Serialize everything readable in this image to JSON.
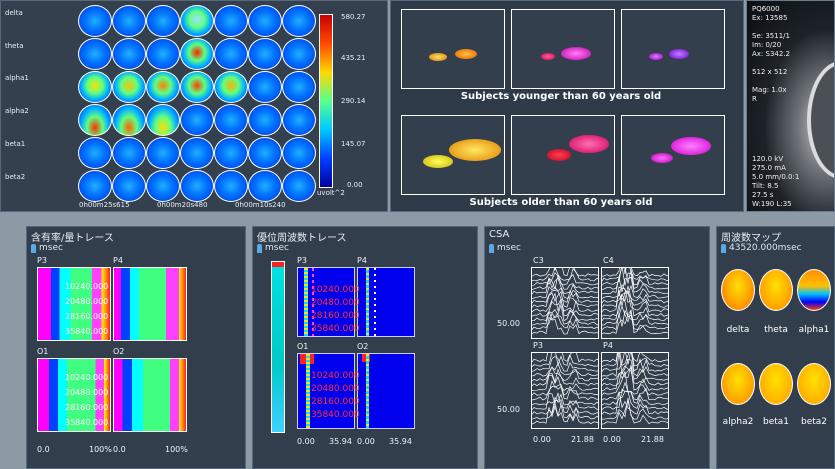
{
  "topo": {
    "rows": [
      "delta",
      "theta",
      "alpha1",
      "alpha2",
      "beta1",
      "beta2"
    ],
    "times": [
      "0h00m25s615",
      "0h00m20s480",
      "0h00m10s240"
    ],
    "scale": [
      "580.27",
      "435.21",
      "290.14",
      "145.07",
      "0.00"
    ],
    "unit": "uvolt^2"
  },
  "ellipses": {
    "caption_young": "Subjects younger than 60 years old",
    "caption_old": "Subjects older than 60 years old"
  },
  "ct": {
    "tl": [
      "PQ6000",
      "Ex: 13585",
      "",
      "Se: 3511/1",
      "Im: 0/20",
      "Ax: S342.2",
      "",
      "512 x 512",
      "",
      "Mag: 1.0x",
      "R"
    ],
    "bl": [
      "120.0 kV",
      "275.0 mA",
      "5.0 mm/0.0:1",
      "Tilt: 8.5",
      "27.5 s",
      "W:190  L:35"
    ]
  },
  "coherence": {
    "title": "含有率/量トレース",
    "unit": "msec",
    "channels": [
      "P3",
      "P4",
      "O1",
      "O2"
    ],
    "ticks": [
      "10240.000",
      "20480.000",
      "28160.000",
      "35840.000"
    ],
    "x_left": "0.0",
    "x_right": "100%"
  },
  "dominant": {
    "title": "優位周波数トレース",
    "unit": "msec",
    "channels": [
      "P3",
      "P4",
      "O1",
      "O2"
    ],
    "ticks": [
      "10240.000",
      "20480.000",
      "28160.000",
      "35840.000"
    ],
    "x_left": "0.00",
    "x_right": "35.94"
  },
  "csa": {
    "title": "CSA",
    "unit": "msec",
    "channels": [
      "C3",
      "C4",
      "P3",
      "P4"
    ],
    "y_tick": "50.00",
    "x_left": "0.00",
    "x_right": "21.88"
  },
  "freqmap": {
    "title": "周波数マップ",
    "time": "43520.000msec",
    "labels": [
      "delta",
      "theta",
      "alpha1",
      "alpha2",
      "beta1",
      "beta2"
    ]
  },
  "colors": {
    "panel": "#323e4c",
    "background": "#8c9aa6",
    "accent_icon": "#5aa9e0"
  }
}
